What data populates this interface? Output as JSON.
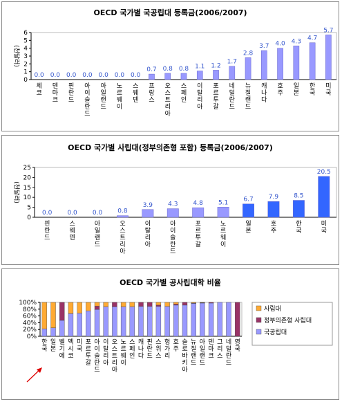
{
  "chart_data": [
    {
      "type": "bar",
      "title": "OECD 국가별 국공립대 등록금(2006/2007)",
      "ylabel": "(천달러)",
      "ylim": [
        0,
        6
      ],
      "yticks": [
        "0",
        "1",
        "2",
        "3",
        "4",
        "5",
        "6"
      ],
      "categories": [
        "체코",
        "덴마크",
        "핀란드",
        "아이슬란드",
        "아일랜드",
        "노르웨이",
        "스웨덴",
        "프랑스",
        "오스트리아",
        "스페인",
        "이탈리아",
        "포르투갈",
        "네덜란드",
        "뉴질랜드",
        "캐나다",
        "호주",
        "일본",
        "한국",
        "미국"
      ],
      "values": [
        0.0,
        0.0,
        0.0,
        0.0,
        0.0,
        0.0,
        0.0,
        0.7,
        0.8,
        0.8,
        1.1,
        1.2,
        1.7,
        2.8,
        3.7,
        4.0,
        4.3,
        4.7,
        5.7
      ],
      "value_labels": [
        "0.0",
        "0.0",
        "0.0",
        "0.0",
        "0.0",
        "0.0",
        "0.0",
        "0.7",
        "0.8",
        "0.8",
        "1.1",
        "1.2",
        "1.7",
        "2.8",
        "3.7",
        "4.0",
        "4.3",
        "4.7",
        "5.7"
      ],
      "colors": {
        "bar": "#9999ff",
        "edge": "#6666cc",
        "label": "#3355cc"
      }
    },
    {
      "type": "bar",
      "title": "OECD 국가별 사립대(정부의존형 포함) 등록금(2006/2007)",
      "ylabel": "(천달러)",
      "ylim": [
        0,
        25
      ],
      "yticks": [
        "0",
        "5",
        "10",
        "15",
        "20",
        "25"
      ],
      "categories": [
        "핀란드",
        "스웨덴",
        "아일랜드",
        "오스트리아",
        "이탈리아",
        "아이슬란드",
        "포르투갈",
        "노르웨이",
        "일본",
        "호주",
        "한국",
        "미국"
      ],
      "values": [
        0.0,
        0.0,
        0.0,
        0.8,
        3.9,
        4.3,
        4.8,
        5.1,
        6.7,
        7.9,
        8.5,
        20.5
      ],
      "value_labels": [
        "0.0",
        "0.0",
        "0.0",
        "0.8",
        "3.9",
        "4.3",
        "4.8",
        "5.1",
        "6.7",
        "7.9",
        "8.5",
        "20.5"
      ],
      "highlight_from": 8,
      "colors": {
        "bar": "#9999ff",
        "bar_highlight": "#3366ff",
        "edge": "#6666cc",
        "label": "#3355cc"
      }
    },
    {
      "type": "bar",
      "stacked": true,
      "title": "OECD 국가별 공사립대학 비율",
      "ylim": [
        0,
        100
      ],
      "yticks": [
        "0%",
        "20%",
        "40%",
        "60%",
        "80%",
        "100%"
      ],
      "categories": [
        "한국",
        "일본",
        "벨기에",
        "멕시코",
        "미국",
        "포르투갈",
        "아이슬란드",
        "이탈리아",
        "오스트리아",
        "노르웨이",
        "스페인",
        "캐나다",
        "핀란드",
        "스위스",
        "헝가리",
        "호주",
        "슬로바키아",
        "뉴질랜드",
        "아일랜드",
        "덴마크",
        "그리스",
        "네덜란드",
        "영국"
      ],
      "series": [
        {
          "name": "국공립대",
          "color": "#9999ff",
          "values": [
            22,
            25,
            47,
            67,
            68,
            75,
            79,
            87,
            87,
            87,
            87,
            88,
            88,
            88,
            88,
            92,
            92,
            97,
            98,
            98,
            100,
            100,
            0
          ]
        },
        {
          "name": "정부의존형 사립대",
          "color": "#993366",
          "values": [
            0,
            0,
            53,
            0,
            0,
            0,
            10,
            0,
            13,
            0,
            0,
            12,
            12,
            4,
            0,
            3,
            8,
            1,
            1,
            2,
            0,
            0,
            100
          ]
        },
        {
          "name": "사립대",
          "color": "#ffaa33",
          "values": [
            78,
            75,
            0,
            33,
            32,
            25,
            11,
            13,
            0,
            13,
            13,
            0,
            0,
            8,
            12,
            5,
            0,
            2,
            1,
            0,
            0,
            0,
            0
          ]
        }
      ],
      "legend": [
        "사립대",
        "정부의존형 사립대",
        "국공립대"
      ],
      "legend_placement": "right",
      "annotation": "arrow pointing to 한국"
    }
  ]
}
